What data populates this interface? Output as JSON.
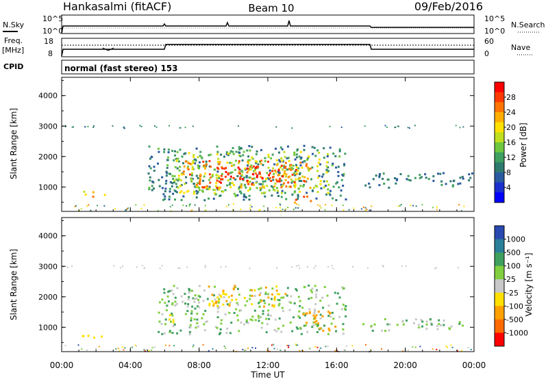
{
  "header": {
    "station": "Hankasalmi (fitACF)",
    "beam": "Beam 10",
    "date": "09/Feb/2016"
  },
  "noise_panel": {
    "left_label": "N.Sky",
    "right_label": "N.Search",
    "left_ticks": [
      "10^5",
      "10^0"
    ],
    "right_ticks": [
      "10^5",
      "10^0"
    ]
  },
  "freq_panel": {
    "left_label_1": "Freq.",
    "left_label_2": "[MHz]",
    "right_label": "Nave",
    "left_ticks": [
      "18",
      "8"
    ],
    "right_ticks": [
      "60",
      "0"
    ]
  },
  "cpid": {
    "label": "CPID",
    "text": "normal (fast stereo) 153"
  },
  "power_colorbar": {
    "title": "Power [dB]",
    "ticks": [
      "28",
      "24",
      "20",
      "16",
      "12",
      "8",
      "4"
    ],
    "colors": [
      "#ff0000",
      "#ff3a00",
      "#ff7400",
      "#ffae00",
      "#ffe000",
      "#bfdf1f",
      "#6fc73f",
      "#3fa060",
      "#2f7a6f",
      "#2a5aa0",
      "#1a2fd0",
      "#0000ff"
    ]
  },
  "velocity_colorbar": {
    "title": "Velocity [m s⁻¹]",
    "ticks": [
      "1000",
      "500",
      "100",
      "25",
      "-25",
      "-100",
      "-500",
      "-1000"
    ],
    "colors": [
      "#2a49b0",
      "#2a7f9a",
      "#3f9f5f",
      "#7fcf3f",
      "#c8c8c8",
      "#ffe000",
      "#ffa000",
      "#ff6a00",
      "#ff0000"
    ]
  },
  "chart_data": [
    {
      "type": "heatmap",
      "title": "Hankasalmi (fitACF)  Beam 10  09/Feb/2016",
      "xlabel": "Time UT",
      "ylabel": "Slant Range [km]",
      "x_ticks": [
        "00:00",
        "04:00",
        "08:00",
        "12:00",
        "16:00",
        "20:00",
        "00:00"
      ],
      "y_ticks": [
        "1000",
        "2000",
        "3000",
        "4000"
      ],
      "xlim_hours": [
        0,
        24
      ],
      "ylim_km": [
        200,
        4600
      ],
      "colorbar": "Power [dB]",
      "clim": [
        0,
        30
      ],
      "blobs": [
        {
          "t0": 5.0,
          "t1": 16.5,
          "r0": 600,
          "r1": 2400,
          "level": 9
        },
        {
          "t0": 6.5,
          "t1": 15.5,
          "r0": 800,
          "r1": 2200,
          "level": 16
        },
        {
          "t0": 7.0,
          "t1": 14.5,
          "r0": 1000,
          "r1": 1900,
          "level": 24
        },
        {
          "t0": 9.0,
          "t1": 13.5,
          "r0": 1100,
          "r1": 1700,
          "level": 28
        },
        {
          "t0": 13.5,
          "t1": 14.5,
          "r0": 500,
          "r1": 800,
          "level": 26
        },
        {
          "t0": 17.5,
          "t1": 24.0,
          "r0": 1000,
          "r1": 1500,
          "level": 8
        },
        {
          "t0": 1.0,
          "t1": 2.5,
          "r0": 700,
          "r1": 900,
          "level": 20
        }
      ]
    },
    {
      "type": "heatmap",
      "title": "Hankasalmi (fitACF)  Beam 10  09/Feb/2016",
      "xlabel": "Time UT",
      "ylabel": "Slant Range [km]",
      "x_ticks": [
        "00:00",
        "04:00",
        "08:00",
        "12:00",
        "16:00",
        "20:00",
        "00:00"
      ],
      "y_ticks": [
        "1000",
        "2000",
        "3000",
        "4000"
      ],
      "xlim_hours": [
        0,
        24
      ],
      "ylim_km": [
        200,
        4600
      ],
      "colorbar": "Velocity [m s⁻¹]",
      "clim": [
        -1000,
        1000
      ],
      "blobs": [
        {
          "t0": 5.5,
          "t1": 16.5,
          "r0": 800,
          "r1": 2400,
          "level": 0
        },
        {
          "t0": 8.5,
          "t1": 13.0,
          "r0": 1700,
          "r1": 2400,
          "level": -300
        },
        {
          "t0": 14.0,
          "t1": 16.0,
          "r0": 900,
          "r1": 1600,
          "level": -400
        },
        {
          "t0": 6.0,
          "t1": 6.5,
          "r0": 1000,
          "r1": 1500,
          "level": -200
        },
        {
          "t0": 17.5,
          "t1": 24.0,
          "r0": 900,
          "r1": 1300,
          "level": 0
        },
        {
          "t0": 1.0,
          "t1": 2.5,
          "r0": 650,
          "r1": 850,
          "level": -200
        }
      ]
    }
  ]
}
